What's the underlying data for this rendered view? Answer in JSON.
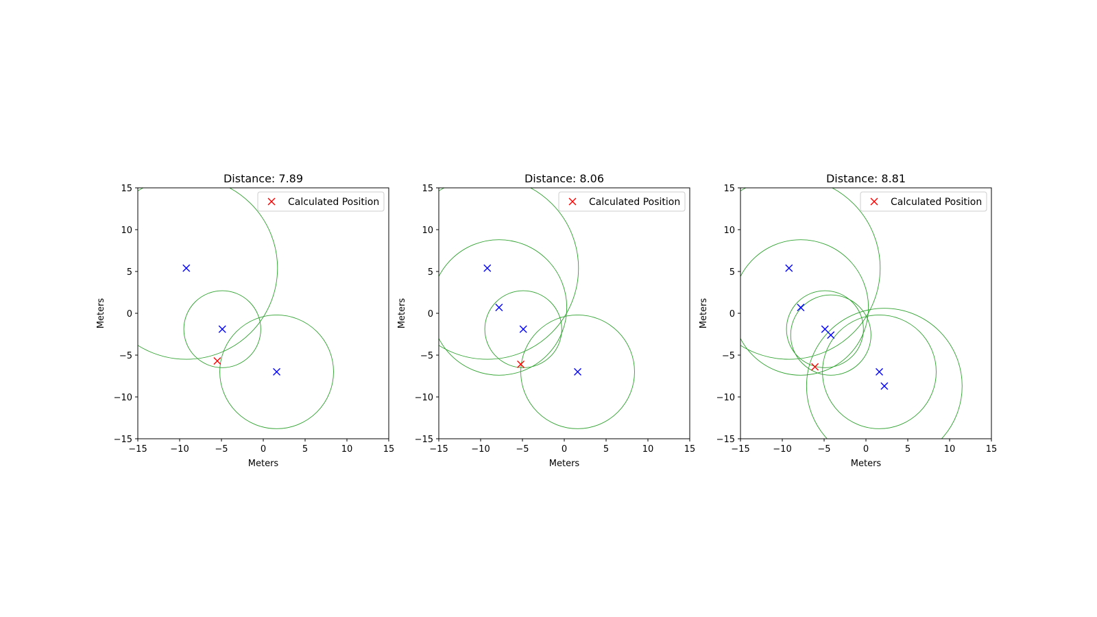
{
  "colors": {
    "anchor_marker": "#0000ff",
    "calculated_marker": "#ff0000",
    "range_circle": "#2ca02c",
    "axes": "#000000",
    "background": "#ffffff",
    "legend_border": "#cccccc"
  },
  "chart_data": [
    {
      "type": "scatter",
      "title": "Distance: 7.89",
      "xlabel": "Meters",
      "ylabel": "Meters",
      "xlim": [
        -15,
        15
      ],
      "ylim": [
        -15,
        15
      ],
      "xticks": [
        -15,
        -10,
        -5,
        0,
        5,
        10,
        15
      ],
      "yticks": [
        -15,
        -10,
        -5,
        0,
        5,
        10,
        15
      ],
      "grid": false,
      "legend": {
        "entries": [
          "Calculated Position"
        ],
        "placement": "top-right"
      },
      "anchors": [
        {
          "x": -9.2,
          "y": 5.4
        },
        {
          "x": -4.9,
          "y": -1.9
        },
        {
          "x": 1.6,
          "y": -7.0
        }
      ],
      "circles": [
        {
          "cx": -9.2,
          "cy": 5.4,
          "r": 10.9
        },
        {
          "cx": -4.9,
          "cy": -1.9,
          "r": 4.6
        },
        {
          "cx": 1.6,
          "cy": -7.0,
          "r": 6.8
        }
      ],
      "calculated_position": {
        "name": "Calculated Position",
        "x": -5.5,
        "y": -5.7
      }
    },
    {
      "type": "scatter",
      "title": "Distance: 8.06",
      "xlabel": "Meters",
      "ylabel": "Meters",
      "xlim": [
        -15,
        15
      ],
      "ylim": [
        -15,
        15
      ],
      "xticks": [
        -15,
        -10,
        -5,
        0,
        5,
        10,
        15
      ],
      "yticks": [
        -15,
        -10,
        -5,
        0,
        5,
        10,
        15
      ],
      "grid": false,
      "legend": {
        "entries": [
          "Calculated Position"
        ],
        "placement": "top-right"
      },
      "anchors": [
        {
          "x": -9.2,
          "y": 5.4
        },
        {
          "x": -7.8,
          "y": 0.7
        },
        {
          "x": -4.9,
          "y": -1.9
        },
        {
          "x": 1.6,
          "y": -7.0
        }
      ],
      "circles": [
        {
          "cx": -9.2,
          "cy": 5.4,
          "r": 10.9
        },
        {
          "cx": -7.8,
          "cy": 0.7,
          "r": 8.1
        },
        {
          "cx": -4.9,
          "cy": -1.9,
          "r": 4.6
        },
        {
          "cx": 1.6,
          "cy": -7.0,
          "r": 6.8
        }
      ],
      "calculated_position": {
        "name": "Calculated Position",
        "x": -5.2,
        "y": -6.1
      }
    },
    {
      "type": "scatter",
      "title": "Distance: 8.81",
      "xlabel": "Meters",
      "ylabel": "Meters",
      "xlim": [
        -15,
        15
      ],
      "ylim": [
        -15,
        15
      ],
      "xticks": [
        -15,
        -10,
        -5,
        0,
        5,
        10,
        15
      ],
      "yticks": [
        -15,
        -10,
        -5,
        0,
        5,
        10,
        15
      ],
      "grid": false,
      "legend": {
        "entries": [
          "Calculated Position"
        ],
        "placement": "top-right"
      },
      "anchors": [
        {
          "x": -9.2,
          "y": 5.4
        },
        {
          "x": -7.8,
          "y": 0.7
        },
        {
          "x": -4.9,
          "y": -1.9
        },
        {
          "x": -4.2,
          "y": -2.6
        },
        {
          "x": 1.6,
          "y": -7.0
        },
        {
          "x": 2.2,
          "y": -8.7
        }
      ],
      "circles": [
        {
          "cx": -9.2,
          "cy": 5.4,
          "r": 10.9
        },
        {
          "cx": -7.8,
          "cy": 0.7,
          "r": 8.1
        },
        {
          "cx": -4.9,
          "cy": -1.9,
          "r": 4.6
        },
        {
          "cx": -4.2,
          "cy": -2.6,
          "r": 4.8
        },
        {
          "cx": 1.6,
          "cy": -7.0,
          "r": 6.8
        },
        {
          "cx": 2.2,
          "cy": -8.7,
          "r": 9.3
        }
      ],
      "calculated_position": {
        "name": "Calculated Position",
        "x": -6.1,
        "y": -6.4
      }
    }
  ]
}
